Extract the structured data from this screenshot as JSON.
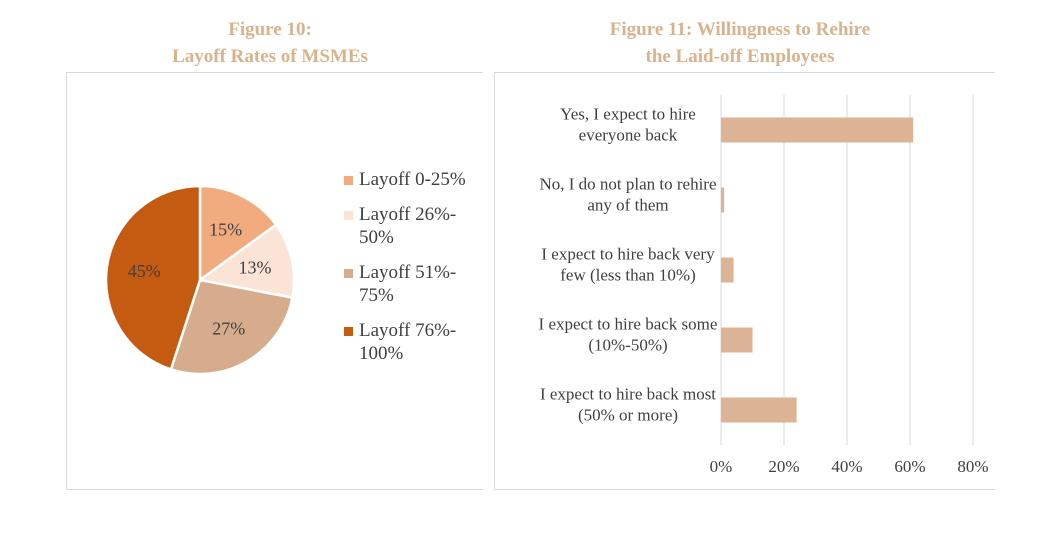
{
  "left_title": {
    "line1": "Figure 10:",
    "line2": "Layoff Rates of MSMEs"
  },
  "right_title": {
    "line1": "Figure 11: Willingness to Rehire",
    "line2": "the Laid-off Employees"
  },
  "chart_data": [
    {
      "type": "pie",
      "title": "Figure 10: Layoff Rates of MSMEs",
      "legend_position": "right",
      "slices": [
        {
          "label": "Layoff 0-25%",
          "value": 15,
          "display": "15%",
          "color": "#f2ab7f"
        },
        {
          "label": "Layoff 26%-50%",
          "value": 13,
          "display": "13%",
          "color": "#fbe3d6"
        },
        {
          "label": "Layoff 51%-75%",
          "value": 27,
          "display": "27%",
          "color": "#d6ac8c"
        },
        {
          "label": "Layoff 76%-100%",
          "value": 45,
          "display": "45%",
          "color": "#c55a11"
        }
      ],
      "legend_lines": [
        [
          "Layoff 0-25%"
        ],
        [
          "Layoff 26%-",
          "50%"
        ],
        [
          "Layoff 51%-",
          "75%"
        ],
        [
          "Layoff 76%-",
          "100%"
        ]
      ]
    },
    {
      "type": "bar",
      "orientation": "horizontal",
      "title": "Figure 11: Willingness to Rehire the Laid-off Employees",
      "categories": [
        [
          "Yes, I expect to hire",
          "everyone back"
        ],
        [
          "No, I do not plan to rehire",
          "any of them"
        ],
        [
          "I expect to hire back very",
          "few (less than 10%)"
        ],
        [
          "I expect to hire back some",
          "(10%-50%)"
        ],
        [
          "I expect to hire back most",
          "(50% or more)"
        ]
      ],
      "values": [
        61,
        1,
        4,
        10,
        24
      ],
      "xlim": [
        0,
        80
      ],
      "ticks": [
        0,
        20,
        40,
        60,
        80
      ],
      "tick_labels": [
        "0%",
        "20%",
        "40%",
        "60%",
        "80%"
      ],
      "grid": true,
      "bar_color": "#dcb394"
    }
  ]
}
